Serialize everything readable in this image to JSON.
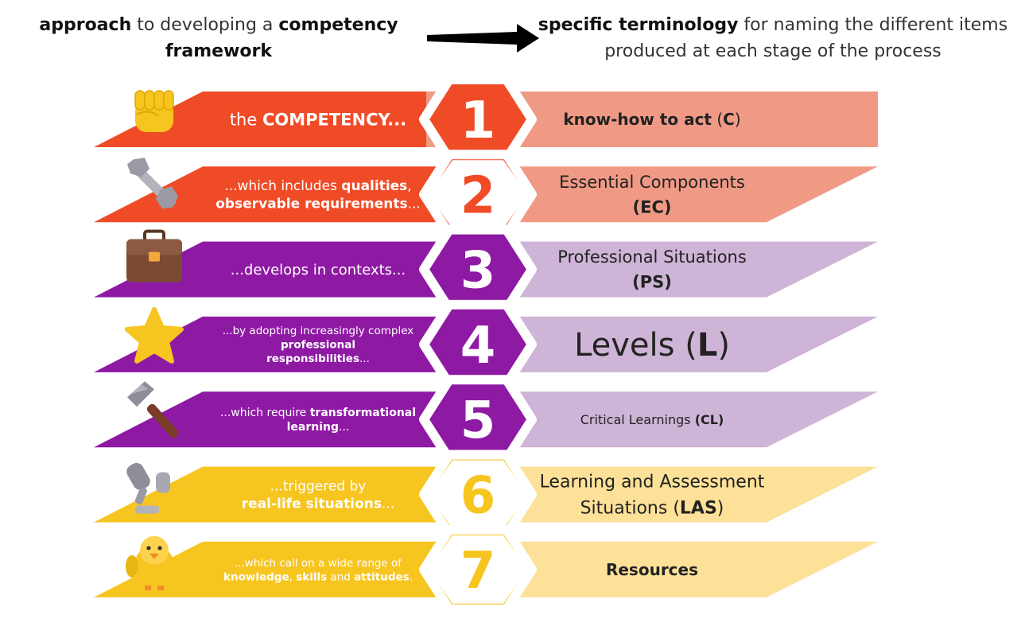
{
  "header": {
    "left": {
      "b1": "approach",
      "t1": " to developing a ",
      "b2": "competency",
      "line2": "framework"
    },
    "right": {
      "b1": "specific terminology",
      "t1": " for naming the different items",
      "line2": "produced at each stage of the process"
    }
  },
  "colors": {
    "red": "#f04b27",
    "red_light": "#f09a86",
    "purple": "#8e1aa3",
    "purple_light": "#ceb4d6",
    "yellow": "#f7c520",
    "yellow_light": "#fde198"
  },
  "rows": [
    {
      "number": "1",
      "icon": "raised-fist-icon",
      "color": "red",
      "left_lines": [
        [
          {
            "t": "the ",
            "b": false
          },
          {
            "t": "COMPETENCY...",
            "b": true
          }
        ]
      ],
      "right_lines": [
        [
          {
            "t": "know-how to act",
            "b": true
          },
          {
            "t": " (",
            "b": false
          },
          {
            "t": "C",
            "b": true
          },
          {
            "t": ")",
            "b": false
          }
        ]
      ]
    },
    {
      "number": "2",
      "icon": "nut-and-bolt-icon",
      "color": "red",
      "left_lines": [
        [
          {
            "t": "...which includes ",
            "b": false
          },
          {
            "t": "qualities",
            "b": true
          },
          {
            "t": ",",
            "b": false
          }
        ],
        [
          {
            "t": "observable requirements",
            "b": true
          },
          {
            "t": "...",
            "b": false
          }
        ]
      ],
      "right_lines": [
        [
          {
            "t": "Essential Components",
            "b": false
          }
        ],
        [
          {
            "t": "(EC)",
            "b": true
          }
        ]
      ]
    },
    {
      "number": "3",
      "icon": "briefcase-icon",
      "color": "purple",
      "left_lines": [
        [
          {
            "t": "...develops in contexts...",
            "b": false
          }
        ]
      ],
      "right_lines": [
        [
          {
            "t": "Professional Situations",
            "b": false
          }
        ],
        [
          {
            "t": "(PS)",
            "b": true
          }
        ]
      ]
    },
    {
      "number": "4",
      "icon": "star-icon",
      "color": "purple",
      "left_lines": [
        [
          {
            "t": "...by adopting increasingly complex",
            "b": false
          }
        ],
        [
          {
            "t": "professional",
            "b": true
          }
        ],
        [
          {
            "t": "responsibilities",
            "b": true
          },
          {
            "t": "...",
            "b": false
          }
        ]
      ],
      "right_lines": [
        [
          {
            "t": "Levels (",
            "b": false
          },
          {
            "t": "L",
            "b": true
          },
          {
            "t": ")",
            "b": false
          }
        ]
      ]
    },
    {
      "number": "5",
      "icon": "hammer-icon",
      "color": "purple",
      "left_lines": [
        [
          {
            "t": "...which require ",
            "b": false
          },
          {
            "t": "transformational",
            "b": true
          }
        ],
        [
          {
            "t": "learning",
            "b": true
          },
          {
            "t": "...",
            "b": false
          }
        ]
      ],
      "right_lines": [
        [
          {
            "t": "Critical Learnings ",
            "b": false
          },
          {
            "t": "(CL)",
            "b": true
          }
        ]
      ]
    },
    {
      "number": "6",
      "icon": "mechanical-leg-icon",
      "color": "yellow",
      "left_lines": [
        [
          {
            "t": "...triggered by",
            "b": false
          }
        ],
        [
          {
            "t": "real-life situations",
            "b": true
          },
          {
            "t": "...",
            "b": false
          }
        ]
      ],
      "right_lines": [
        [
          {
            "t": "Learning and Assessment",
            "b": false
          }
        ],
        [
          {
            "t": "Situations (",
            "b": false
          },
          {
            "t": "LAS",
            "b": true
          },
          {
            "t": ")",
            "b": false
          }
        ]
      ]
    },
    {
      "number": "7",
      "icon": "baby-chick-icon",
      "color": "yellow",
      "left_lines": [
        [
          {
            "t": "...which call on a wide range of",
            "b": false
          }
        ],
        [
          {
            "t": "knowledge",
            "b": true
          },
          {
            "t": ", ",
            "b": false
          },
          {
            "t": "skills",
            "b": true
          },
          {
            "t": " and ",
            "b": false
          },
          {
            "t": "attitudes",
            "b": true
          },
          {
            "t": ".",
            "b": false
          }
        ]
      ],
      "right_lines": [
        [
          {
            "t": "Resources",
            "b": true
          }
        ]
      ]
    }
  ]
}
